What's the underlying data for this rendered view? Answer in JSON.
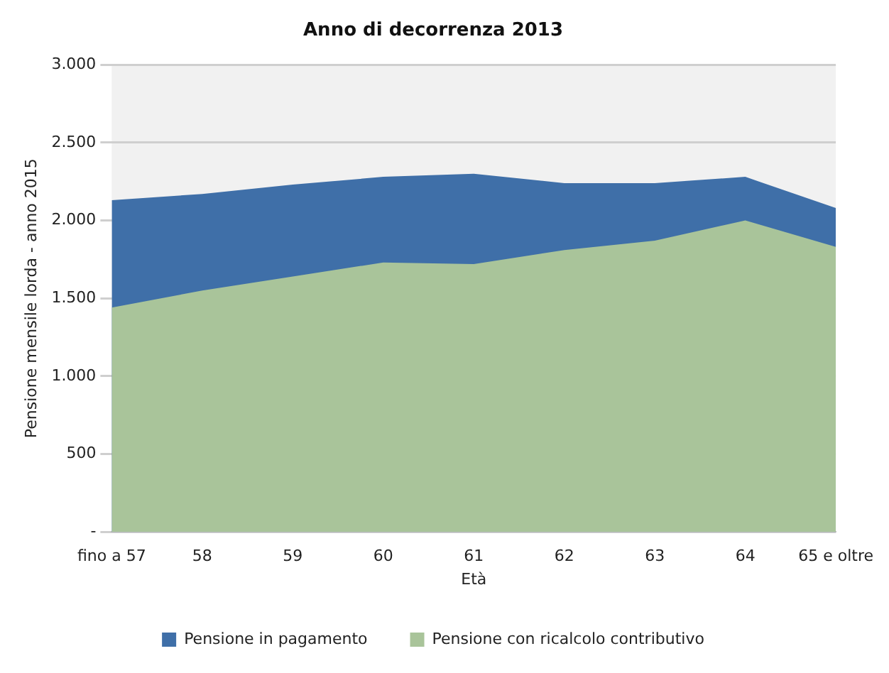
{
  "chart_data": {
    "type": "area",
    "title": "Anno di decorrenza 2013",
    "xlabel": "Età",
    "ylabel": "Pensione mensile lorda - anno 2015",
    "categories": [
      "fino a 57",
      "58",
      "59",
      "60",
      "61",
      "62",
      "63",
      "64",
      "65 e oltre"
    ],
    "series": [
      {
        "name": "Pensione in pagamento",
        "color": "#3f6fa8",
        "values": [
          2130,
          2170,
          2230,
          2280,
          2300,
          2240,
          2240,
          2280,
          2080
        ]
      },
      {
        "name": "Pensione con ricalcolo contributivo",
        "color": "#a9c49a",
        "values": [
          1440,
          1550,
          1640,
          1730,
          1720,
          1810,
          1870,
          2000,
          1830
        ]
      }
    ],
    "ylim": [
      0,
      3000
    ],
    "yticks": [
      {
        "value": 0,
        "label": "-"
      },
      {
        "value": 500,
        "label": "500"
      },
      {
        "value": 1000,
        "label": "1.000"
      },
      {
        "value": 1500,
        "label": "1.500"
      },
      {
        "value": 2000,
        "label": "2.000"
      },
      {
        "value": 2500,
        "label": "2.500"
      },
      {
        "value": 3000,
        "label": "3.000"
      }
    ],
    "grid": "y",
    "legend": "bottom"
  }
}
